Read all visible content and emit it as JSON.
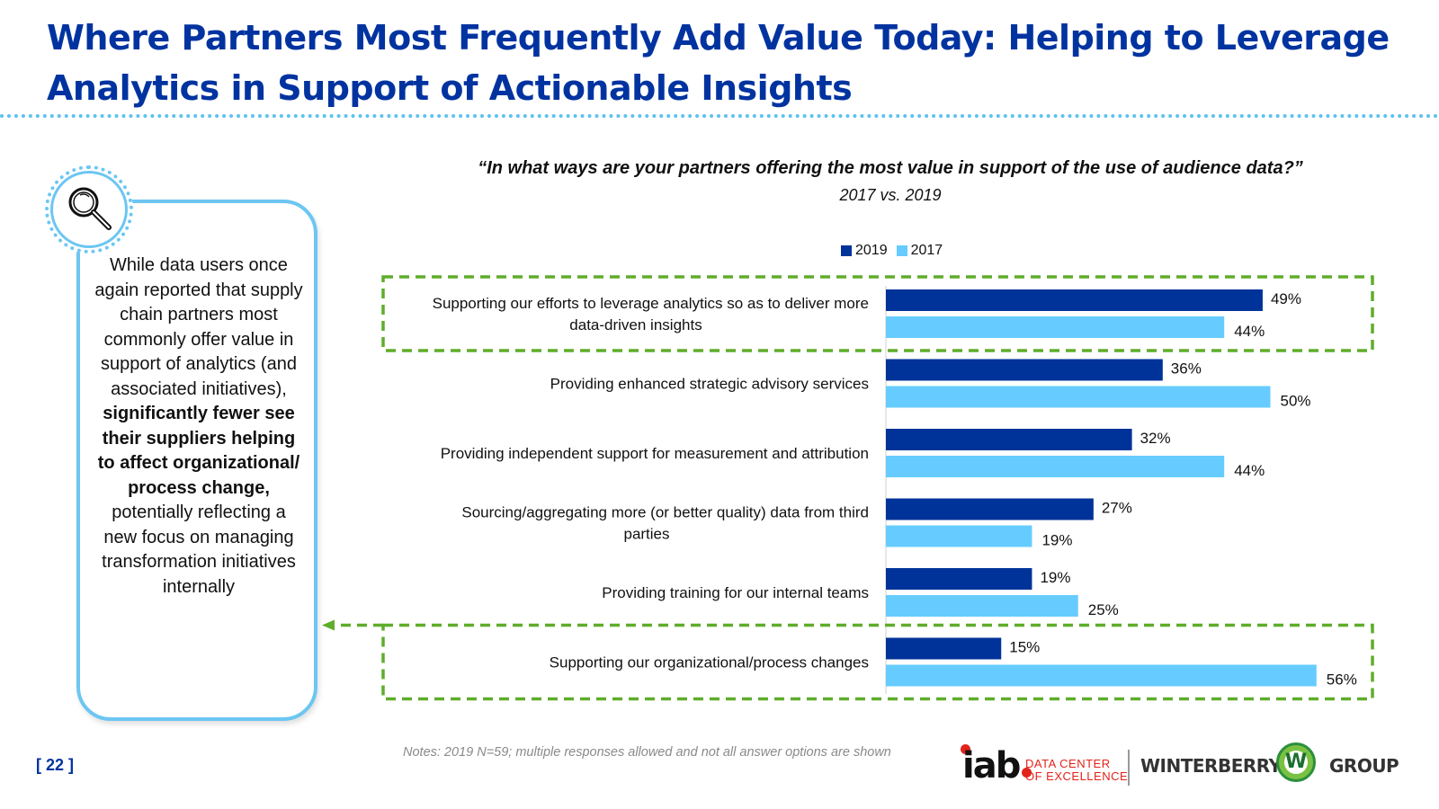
{
  "slide": {
    "title": "Where Partners Most Frequently Add Value Today: Helping to Leverage Analytics in Support of Actionable Insights",
    "page_number": "[ 22 ]",
    "notes": "Notes: 2019 N=59; multiple responses allowed and not all answer options are shown"
  },
  "sidebar": {
    "text_pre": "While data users once again reported that supply chain partners most commonly offer value in support of analytics (and associated initiatives),",
    "text_bold": "significantly fewer see their suppliers helping to affect organizational/ process change,",
    "text_post": "potentially reflecting a new focus on managing transformation initiatives internally",
    "icon": "magnifier-icon"
  },
  "logos": {
    "iab": "iab",
    "dce_line1": "DATA CENTER",
    "dce_line2": "OF EXCELLENCE",
    "winterberry": "WINTERBERRY",
    "w": "W",
    "group": "GROUP"
  },
  "colors": {
    "title": "#0033a0",
    "series_2019": "#003399",
    "series_2017": "#66ccff",
    "highlight": "#5fad2b",
    "box": "#6cc6f2"
  },
  "chart_data": {
    "type": "bar",
    "orientation": "horizontal",
    "title": "“In what ways are your partners offering the most value in support of the use of audience data?”",
    "subtitle": "2017 vs. 2019",
    "categories": [
      "Supporting our efforts to leverage analytics so as to deliver more data-driven insights",
      "Providing enhanced strategic advisory services",
      "Providing independent support for measurement and attribution",
      "Sourcing/aggregating more (or better quality) data from third parties",
      "Providing training for our internal teams",
      "Supporting our organizational/process changes"
    ],
    "category_lines": [
      [
        "Supporting our efforts to leverage analytics so as to deliver more",
        "data-driven insights"
      ],
      [
        "Providing enhanced strategic advisory services"
      ],
      [
        "Providing independent support for measurement and attribution"
      ],
      [
        "Sourcing/aggregating more (or better quality) data from third",
        "parties"
      ],
      [
        "Providing training for our internal teams"
      ],
      [
        "Supporting our organizational/process changes"
      ]
    ],
    "series": [
      {
        "name": "2019",
        "values": [
          49,
          36,
          32,
          27,
          19,
          15
        ],
        "labels": [
          "49%",
          "36%",
          "32%",
          "27%",
          "19%",
          "15%"
        ]
      },
      {
        "name": "2017",
        "values": [
          44,
          50,
          44,
          19,
          25,
          56
        ],
        "labels": [
          "44%",
          "50%",
          "44%",
          "19%",
          "25%",
          "56%"
        ]
      }
    ],
    "xlim": [
      0,
      60
    ],
    "highlighted_categories": [
      0,
      5
    ],
    "legend": "top",
    "grid": false
  }
}
